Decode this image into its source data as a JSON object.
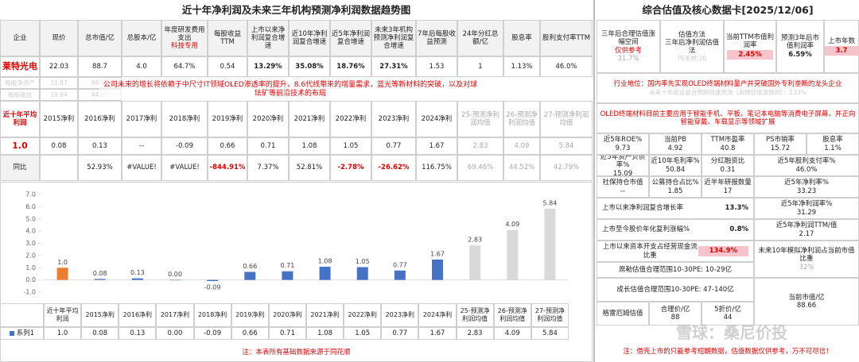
{
  "left": {
    "title": "近十年净利润及未来三年机构预测净利润数据趋势图",
    "header": [
      "企业",
      "现价",
      "总市值/亿",
      "总股本/亿",
      "年度研发费用支出",
      "每股收益TTM",
      "上市以来净利润复合增速",
      "近10年净利润复合增速",
      "近5年净利润复合增速",
      "未来3年机构预测净利润复合增速",
      "7年后每股收益预测",
      "24年分红总额/亿",
      "股息率",
      "股利支付率TTM"
    ],
    "tech_note": "科技专用",
    "company": [
      "莱特光电",
      "22.03",
      "88.7",
      "4.0",
      "64.7%",
      "0.54",
      "13.29%",
      "35.08%",
      "18.76%",
      "27.31%",
      "1.53",
      "1",
      "1.13%",
      "46.0%"
    ],
    "faint_rows": [
      [
        "每股净资产",
        "21.87",
        "88.01"
      ],
      [
        "每股收益",
        "10.94",
        "44.01"
      ]
    ],
    "note": "公司未来的增长将依赖于中尺寸IT领域OLED渗透率的提升，8.6代线带来的增量需求，蓝光等新材料的突破，以及对球珐矿等前沿技术的布局",
    "profit_header": [
      "近十年平均利润",
      "2015净利",
      "2016净利",
      "2017净利",
      "2018净利",
      "2019净利",
      "2020净利",
      "2021净利",
      "2022净利",
      "2023净利",
      "2024净利",
      "25-预测净利润均值",
      "26-预测净利润均值",
      "27-预测净利润均值"
    ],
    "profits": [
      "1.0",
      "0.08",
      "0.13",
      "--",
      "-0.09",
      "0.66",
      "0.71",
      "1.08",
      "1.05",
      "0.77",
      "1.67",
      "2.83",
      "4.09",
      "5.84"
    ],
    "yoy_label": "同比",
    "yoy": [
      "52.93%",
      "#VALUE!",
      "#VALUE!",
      "-844.91%",
      "7.37%",
      "52.81%",
      "-2.78%",
      "-26.62%",
      "116.75%",
      "69.46%",
      "44.52%",
      "42.79%"
    ],
    "footer": "注：本表所有基础数据来源于同花顺"
  },
  "chart_data": {
    "type": "bar",
    "categories": [
      "近十年平均利润",
      "2015净利",
      "2016净利",
      "2017净利",
      "2018净利",
      "2019净利",
      "2020净利",
      "2021净利",
      "2022净利",
      "2023净利",
      "2024净利",
      "25-预测净利润均值",
      "26-预测净利润均值",
      "27-预测净利润均值"
    ],
    "series": [
      {
        "name": "系列1",
        "color": "#4472c4",
        "colors": [
          "#ed7d31",
          "#4472c4",
          "#4472c4",
          "#4472c4",
          "#4472c4",
          "#4472c4",
          "#4472c4",
          "#4472c4",
          "#4472c4",
          "#4472c4",
          "#4472c4",
          "#d9d9d9",
          "#d9d9d9",
          "#d9d9d9"
        ],
        "values": [
          1.0,
          0.08,
          0.13,
          0.0,
          -0.09,
          0.66,
          0.71,
          1.08,
          1.05,
          0.77,
          1.67,
          2.83,
          4.09,
          5.84
        ],
        "value_labels": [
          "1.0",
          "0.08",
          "0.13",
          "0.00",
          "-0.09",
          "0.66",
          "0.71",
          "1.08",
          "1.05",
          "0.77",
          "1.67",
          "2.83",
          "4.09",
          "5.84"
        ]
      }
    ],
    "ylim": [
      -1,
      7
    ],
    "yticks": [
      {
        "value": -1,
        "label": "-1.0"
      },
      {
        "value": 0,
        "label": "0.0"
      },
      {
        "value": 1,
        "label": "1.0"
      },
      {
        "value": 2,
        "label": "2.0"
      },
      {
        "value": 3,
        "label": "3.0"
      },
      {
        "value": 4,
        "label": "4.0"
      },
      {
        "value": 5,
        "label": "5.0"
      },
      {
        "value": 6,
        "label": "6.0"
      },
      {
        "value": 7,
        "label": "7.0"
      }
    ],
    "grid": false
  },
  "right": {
    "title": "综合估值及核心数据卡[2025/12/06]",
    "space": {
      "label": "三年后合理估值涨幅空间",
      "note": "仅供参考",
      "value": "31.7%"
    },
    "method": {
      "label": "估值方法",
      "value": "三年后净利润估值法",
      "pe": "PE系数:20"
    },
    "ttm_yield": {
      "label": "当前TTM市值利润率",
      "value": "2.45%"
    },
    "future_yield": {
      "label": "预测3年后市值利润率",
      "value": "6.59%"
    },
    "years": {
      "label": "上市年数",
      "value": "3.7"
    },
    "industry": "行业地位：国内率先实现OLED终端材料量产并突破国外专利垄断的龙头企业",
    "ai_growth": "未来十年收益复合预期增速预测（AI预估增速预测）：133%",
    "business": "OLED终端材料目前主要应用于智能手机、平板、笔记本电脑等消费电子屏幕，并正向智能穿戴、车载显示等领域扩展",
    "metrics": [
      [
        "近5年ROE%",
        "9.73"
      ],
      [
        "当前PB",
        "4.92"
      ],
      [
        "TTM市盈率",
        "40.8"
      ],
      [
        "PS市销率",
        "15.72"
      ],
      [
        "股息率",
        "1.1%"
      ],
      [
        "近5年资产负债率%",
        "15.09"
      ],
      [
        "近10年毛利率%",
        "50.84"
      ],
      [
        "分红融资比",
        "0.31"
      ],
      [
        "近5年股利支付率%",
        "46.0%"
      ],
      [
        "社保持仓市值",
        "--"
      ],
      [
        "公募持仓占比%",
        "1.85"
      ],
      [
        "近半年研报数量",
        "17"
      ],
      [
        "近5年净利率%",
        "33.23"
      ],
      [
        "上市以来净利润复合增长率",
        "13.3%"
      ],
      [
        "近5年净利润率%",
        "31.29"
      ],
      [
        "上市至今股价年化复利涨幅%",
        "0.8%"
      ],
      [
        "近5年净利润TTM/值",
        "2.17"
      ],
      [
        "上市以来资本开支占经营现金流比重",
        "134.9%"
      ],
      [
        "未来10年模拟净利润占当前市值比重",
        "32%"
      ]
    ],
    "shiller": "席勒估值合理范围10-30PE: 10-29亿",
    "growth": "成长估值合理范围10-30PE: 47-140亿",
    "market_cap": [
      "当前市值/亿",
      "88.66"
    ],
    "graham": "格雷厄姆估值",
    "fair": [
      "合理价/亿",
      "88"
    ],
    "half": [
      "5折价/亿",
      "44"
    ],
    "watermark": "雪球：桑尼价投",
    "footnote": "注：借壳上市的只能参考短期数据，估值数据仅供参考，万不可尽信！"
  }
}
